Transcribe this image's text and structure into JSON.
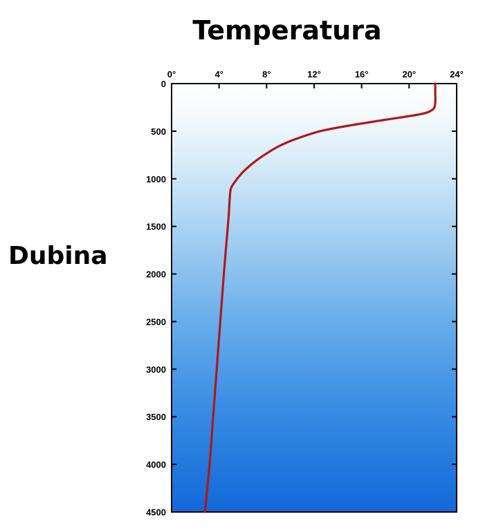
{
  "chart_data": {
    "type": "line",
    "title": "Temperatura",
    "xlabel": "Temperatura",
    "ylabel": "Dubina",
    "xlim": [
      0,
      24
    ],
    "ylim": [
      0,
      4500
    ],
    "y_inverted": true,
    "x_axis_position": "top",
    "x_ticks": [
      0,
      4,
      8,
      12,
      16,
      20,
      24
    ],
    "x_tick_labels": [
      "0°",
      "4°",
      "8°",
      "12°",
      "16°",
      "20°",
      "24°"
    ],
    "y_ticks": [
      0,
      500,
      1000,
      1500,
      2000,
      2500,
      3000,
      3500,
      4000,
      4500
    ],
    "y_tick_labels": [
      "0",
      "500",
      "1000",
      "1500",
      "2000",
      "2500",
      "3000",
      "3500",
      "4000",
      "4500"
    ],
    "grid": false,
    "background": "blue gradient (light near surface, dark at depth)",
    "series": [
      {
        "color": "#b01818",
        "points": [
          {
            "x": 22.2,
            "y": 0
          },
          {
            "x": 22.2,
            "y": 100
          },
          {
            "x": 22.2,
            "y": 200
          },
          {
            "x": 22.0,
            "y": 270
          },
          {
            "x": 21.0,
            "y": 320
          },
          {
            "x": 18.0,
            "y": 380
          },
          {
            "x": 15.0,
            "y": 440
          },
          {
            "x": 12.5,
            "y": 500
          },
          {
            "x": 10.5,
            "y": 580
          },
          {
            "x": 9.0,
            "y": 660
          },
          {
            "x": 7.8,
            "y": 750
          },
          {
            "x": 6.8,
            "y": 840
          },
          {
            "x": 6.0,
            "y": 930
          },
          {
            "x": 5.4,
            "y": 1020
          },
          {
            "x": 5.0,
            "y": 1100
          },
          {
            "x": 4.9,
            "y": 1200
          },
          {
            "x": 4.8,
            "y": 1400
          },
          {
            "x": 4.6,
            "y": 1700
          },
          {
            "x": 4.4,
            "y": 2000
          },
          {
            "x": 4.1,
            "y": 2500
          },
          {
            "x": 3.8,
            "y": 3000
          },
          {
            "x": 3.5,
            "y": 3500
          },
          {
            "x": 3.2,
            "y": 4000
          },
          {
            "x": 2.8,
            "y": 4500
          }
        ]
      }
    ]
  }
}
